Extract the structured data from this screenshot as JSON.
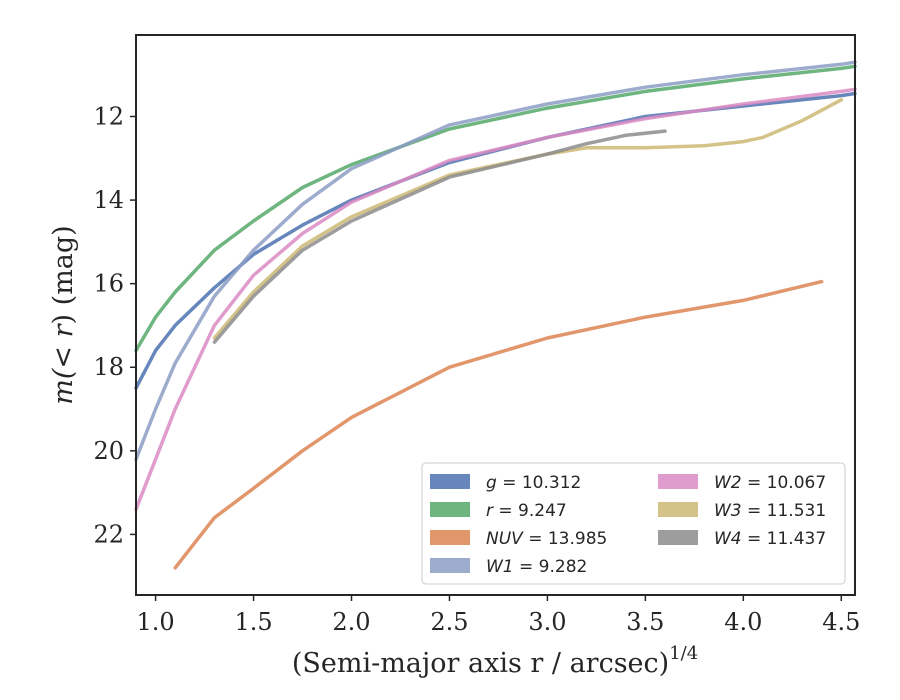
{
  "chart_data": {
    "type": "line",
    "xlabel": "(Semi-major axis r / arcsec)",
    "xlabel_exponent": "1/4",
    "ylabel_prefix": "m(",
    "ylabel_var": "< r",
    "ylabel_suffix": ") (mag)",
    "xlim": [
      0.9,
      4.57
    ],
    "ylim": [
      23.45,
      10.05
    ],
    "y_inverted": true,
    "grid": false,
    "legend_position": "lower-right",
    "xticks": [
      "1.0",
      "1.5",
      "2.0",
      "2.5",
      "3.0",
      "3.5",
      "4.0",
      "4.5"
    ],
    "yticks": [
      "12",
      "14",
      "16",
      "18",
      "20",
      "22"
    ],
    "series": [
      {
        "name": "g",
        "total": "10.312",
        "color": "#4c72b0",
        "x": [
          0.9,
          1.0,
          1.1,
          1.3,
          1.5,
          1.75,
          2.0,
          2.5,
          3.0,
          3.5,
          4.0,
          4.5,
          4.57
        ],
        "y": [
          18.5,
          17.6,
          17.0,
          16.1,
          15.3,
          14.6,
          14.0,
          13.1,
          12.5,
          12.0,
          11.75,
          11.5,
          11.45
        ]
      },
      {
        "name": "r",
        "total": "9.247",
        "color": "#55a868",
        "x": [
          0.9,
          1.0,
          1.1,
          1.3,
          1.5,
          1.75,
          2.0,
          2.5,
          3.0,
          3.5,
          4.0,
          4.5,
          4.57
        ],
        "y": [
          17.6,
          16.8,
          16.2,
          15.2,
          14.5,
          13.7,
          13.15,
          12.3,
          11.8,
          11.4,
          11.1,
          10.85,
          10.8
        ]
      },
      {
        "name": "NUV",
        "total": "13.985",
        "color": "#dd8452",
        "x": [
          1.1,
          1.3,
          1.5,
          1.75,
          2.0,
          2.5,
          3.0,
          3.5,
          4.0,
          4.4
        ],
        "y": [
          22.8,
          21.6,
          20.9,
          20.0,
          19.2,
          18.0,
          17.3,
          16.8,
          16.4,
          15.95
        ]
      },
      {
        "name": "W1",
        "total": "9.282",
        "color": "#8c9cc4",
        "x": [
          0.9,
          1.0,
          1.1,
          1.3,
          1.5,
          1.75,
          2.0,
          2.5,
          3.0,
          3.5,
          4.0,
          4.5,
          4.57
        ],
        "y": [
          20.2,
          19.0,
          17.9,
          16.3,
          15.2,
          14.1,
          13.25,
          12.2,
          11.7,
          11.3,
          11.0,
          10.75,
          10.7
        ]
      },
      {
        "name": "W2",
        "total": "10.067",
        "color": "#da8bc3",
        "x": [
          0.9,
          1.0,
          1.1,
          1.3,
          1.5,
          1.75,
          2.0,
          2.5,
          3.0,
          3.5,
          4.0,
          4.5,
          4.57
        ],
        "y": [
          21.4,
          20.2,
          19.0,
          17.0,
          15.8,
          14.8,
          14.05,
          13.05,
          12.5,
          12.05,
          11.7,
          11.4,
          11.35
        ]
      },
      {
        "name": "W3",
        "total": "11.531",
        "color": "#ccb974",
        "x": [
          1.3,
          1.5,
          1.75,
          2.0,
          2.5,
          3.0,
          3.2,
          3.5,
          3.8,
          4.0,
          4.1,
          4.3,
          4.5
        ],
        "y": [
          17.3,
          16.2,
          15.1,
          14.4,
          13.4,
          12.9,
          12.75,
          12.75,
          12.7,
          12.6,
          12.5,
          12.1,
          11.6
        ]
      },
      {
        "name": "W4",
        "total": "11.437",
        "color": "#8c8c8c",
        "x": [
          1.3,
          1.5,
          1.75,
          2.0,
          2.5,
          3.0,
          3.2,
          3.4,
          3.6
        ],
        "y": [
          17.4,
          16.3,
          15.2,
          14.5,
          13.45,
          12.9,
          12.65,
          12.45,
          12.35
        ]
      }
    ]
  }
}
